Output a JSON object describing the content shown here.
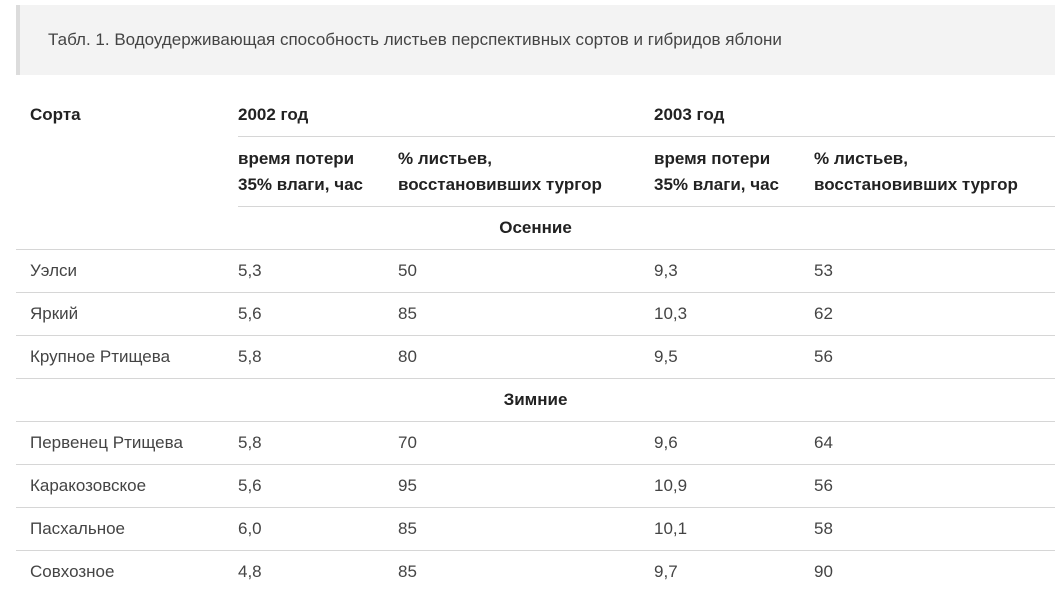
{
  "caption": "Табл. 1. Водоудерживающая способность листьев перспективных сортов и гибридов яблони",
  "table": {
    "col_variety": "Сорта",
    "year_2002": "2002 год",
    "year_2003": "2003 год",
    "sub_time_line1": "время потери",
    "sub_time_line2": "35% влаги, час",
    "sub_pct_line1": "% листьев,",
    "sub_pct_line2": "восстановивших тургор",
    "groups": [
      {
        "name": "Осенние",
        "rows": [
          {
            "variety": "Уэлси",
            "t2002": "5,3",
            "p2002": "50",
            "t2003": "9,3",
            "p2003": "53"
          },
          {
            "variety": "Яркий",
            "t2002": "5,6",
            "p2002": "85",
            "t2003": "10,3",
            "p2003": "62"
          },
          {
            "variety": "Крупное Ртищева",
            "t2002": "5,8",
            "p2002": "80",
            "t2003": "9,5",
            "p2003": "56"
          }
        ]
      },
      {
        "name": "Зимние",
        "rows": [
          {
            "variety": "Первенец Ртищева",
            "t2002": "5,8",
            "p2002": "70",
            "t2003": "9,6",
            "p2003": "64"
          },
          {
            "variety": "Каракозовское",
            "t2002": "5,6",
            "p2002": "95",
            "t2003": "10,9",
            "p2003": "56"
          },
          {
            "variety": "Пасхальное",
            "t2002": "6,0",
            "p2002": "85",
            "t2003": "10,1",
            "p2003": "58"
          },
          {
            "variety": "Совхозное",
            "t2002": "4,8",
            "p2002": "85",
            "t2003": "9,7",
            "p2003": "90"
          }
        ]
      }
    ]
  }
}
